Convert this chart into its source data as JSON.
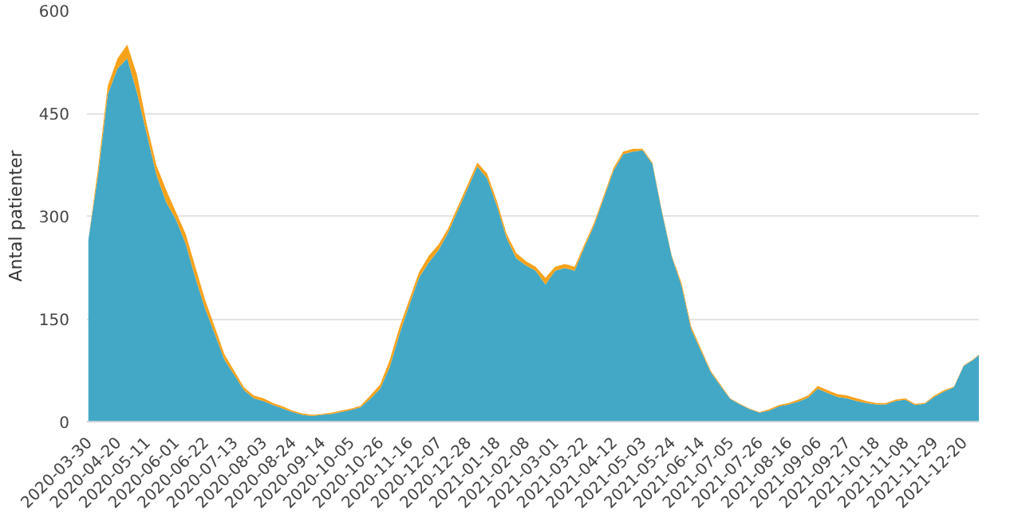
{
  "chart_data": {
    "type": "area",
    "stacked": true,
    "ylabel": "Antal patienter",
    "x": [
      "2020-03-30",
      "2020-04-06",
      "2020-04-13",
      "2020-04-20",
      "2020-04-27",
      "2020-05-04",
      "2020-05-11",
      "2020-05-18",
      "2020-05-25",
      "2020-06-01",
      "2020-06-08",
      "2020-06-15",
      "2020-06-22",
      "2020-06-29",
      "2020-07-06",
      "2020-07-13",
      "2020-07-20",
      "2020-07-27",
      "2020-08-03",
      "2020-08-10",
      "2020-08-17",
      "2020-08-24",
      "2020-08-31",
      "2020-09-07",
      "2020-09-14",
      "2020-09-21",
      "2020-09-28",
      "2020-10-05",
      "2020-10-12",
      "2020-10-19",
      "2020-10-26",
      "2020-11-02",
      "2020-11-09",
      "2020-11-16",
      "2020-11-23",
      "2020-11-30",
      "2020-12-07",
      "2020-12-14",
      "2020-12-21",
      "2020-12-28",
      "2021-01-04",
      "2021-01-11",
      "2021-01-18",
      "2021-01-25",
      "2021-02-01",
      "2021-02-08",
      "2021-02-15",
      "2021-02-22",
      "2021-03-01",
      "2021-03-08",
      "2021-03-15",
      "2021-03-22",
      "2021-03-29",
      "2021-04-05",
      "2021-04-12",
      "2021-04-19",
      "2021-04-26",
      "2021-05-03",
      "2021-05-10",
      "2021-05-17",
      "2021-05-24",
      "2021-05-31",
      "2021-06-07",
      "2021-06-14",
      "2021-06-21",
      "2021-06-28",
      "2021-07-05",
      "2021-07-12",
      "2021-07-19",
      "2021-07-26",
      "2021-08-02",
      "2021-08-09",
      "2021-08-16",
      "2021-08-23",
      "2021-08-30",
      "2021-09-06",
      "2021-09-13",
      "2021-09-20",
      "2021-09-27",
      "2021-10-04",
      "2021-10-11",
      "2021-10-18",
      "2021-10-25",
      "2021-11-01",
      "2021-11-08",
      "2021-11-15",
      "2021-11-22",
      "2021-11-29",
      "2021-12-06",
      "2021-12-13",
      "2021-12-20",
      "2021-12-27",
      "2021-12-31"
    ],
    "series": [
      {
        "color": "#42a8c6",
        "values": [
          265,
          360,
          478,
          515,
          530,
          480,
          420,
          360,
          320,
          295,
          260,
          210,
          165,
          128,
          90,
          68,
          46,
          34,
          30,
          24,
          19,
          14,
          10,
          8,
          10,
          11,
          14,
          17,
          21,
          33,
          48,
          80,
          128,
          170,
          210,
          232,
          250,
          276,
          308,
          340,
          372,
          355,
          315,
          268,
          238,
          228,
          220,
          200,
          220,
          224,
          220,
          254,
          286,
          326,
          366,
          390,
          394,
          396,
          376,
          304,
          240,
          198,
          134,
          103,
          72,
          52,
          33,
          25,
          18,
          13,
          16,
          22,
          25,
          29,
          35,
          48,
          42,
          36,
          34,
          30,
          27,
          25,
          25,
          30,
          32,
          24,
          26,
          36,
          44,
          50,
          81,
          90,
          97
        ]
      },
      {
        "color": "#f7a21b",
        "values": [
          0,
          10,
          12,
          15,
          20,
          26,
          14,
          14,
          18,
          11,
          14,
          16,
          13,
          10,
          8,
          6,
          4,
          4,
          4,
          3,
          3,
          2,
          2,
          2,
          1,
          2,
          2,
          2,
          2,
          5,
          6,
          10,
          10,
          8,
          8,
          10,
          8,
          6,
          6,
          6,
          6,
          7,
          7,
          6,
          8,
          6,
          6,
          10,
          6,
          6,
          6,
          4,
          4,
          4,
          4,
          4,
          4,
          2,
          2,
          2,
          2,
          4,
          4,
          3,
          2,
          2,
          1,
          1,
          1,
          1,
          2,
          2,
          2,
          3,
          3,
          4,
          4,
          4,
          4,
          4,
          3,
          2,
          2,
          2,
          2,
          2,
          1,
          2,
          2,
          1,
          1,
          1,
          1
        ]
      }
    ],
    "xlim": [
      "2020-03-29",
      "2021-12-31"
    ],
    "xticks": [
      "2020-03-30",
      "2020-04-20",
      "2020-05-11",
      "2020-06-01",
      "2020-06-22",
      "2020-07-13",
      "2020-08-03",
      "2020-08-24",
      "2020-09-14",
      "2020-10-05",
      "2020-10-26",
      "2020-11-16",
      "2020-12-07",
      "2020-12-28",
      "2021-01-18",
      "2021-02-08",
      "2021-03-01",
      "2021-03-22",
      "2021-04-12",
      "2021-05-03",
      "2021-05-24",
      "2021-06-14",
      "2021-07-05",
      "2021-07-26",
      "2021-08-16",
      "2021-09-06",
      "2021-09-27",
      "2021-10-18",
      "2021-11-08",
      "2021-11-29",
      "2021-12-20"
    ],
    "ylim": [
      0,
      600
    ],
    "yticks": [
      0,
      150,
      300,
      450,
      600
    ],
    "grid": "y"
  }
}
